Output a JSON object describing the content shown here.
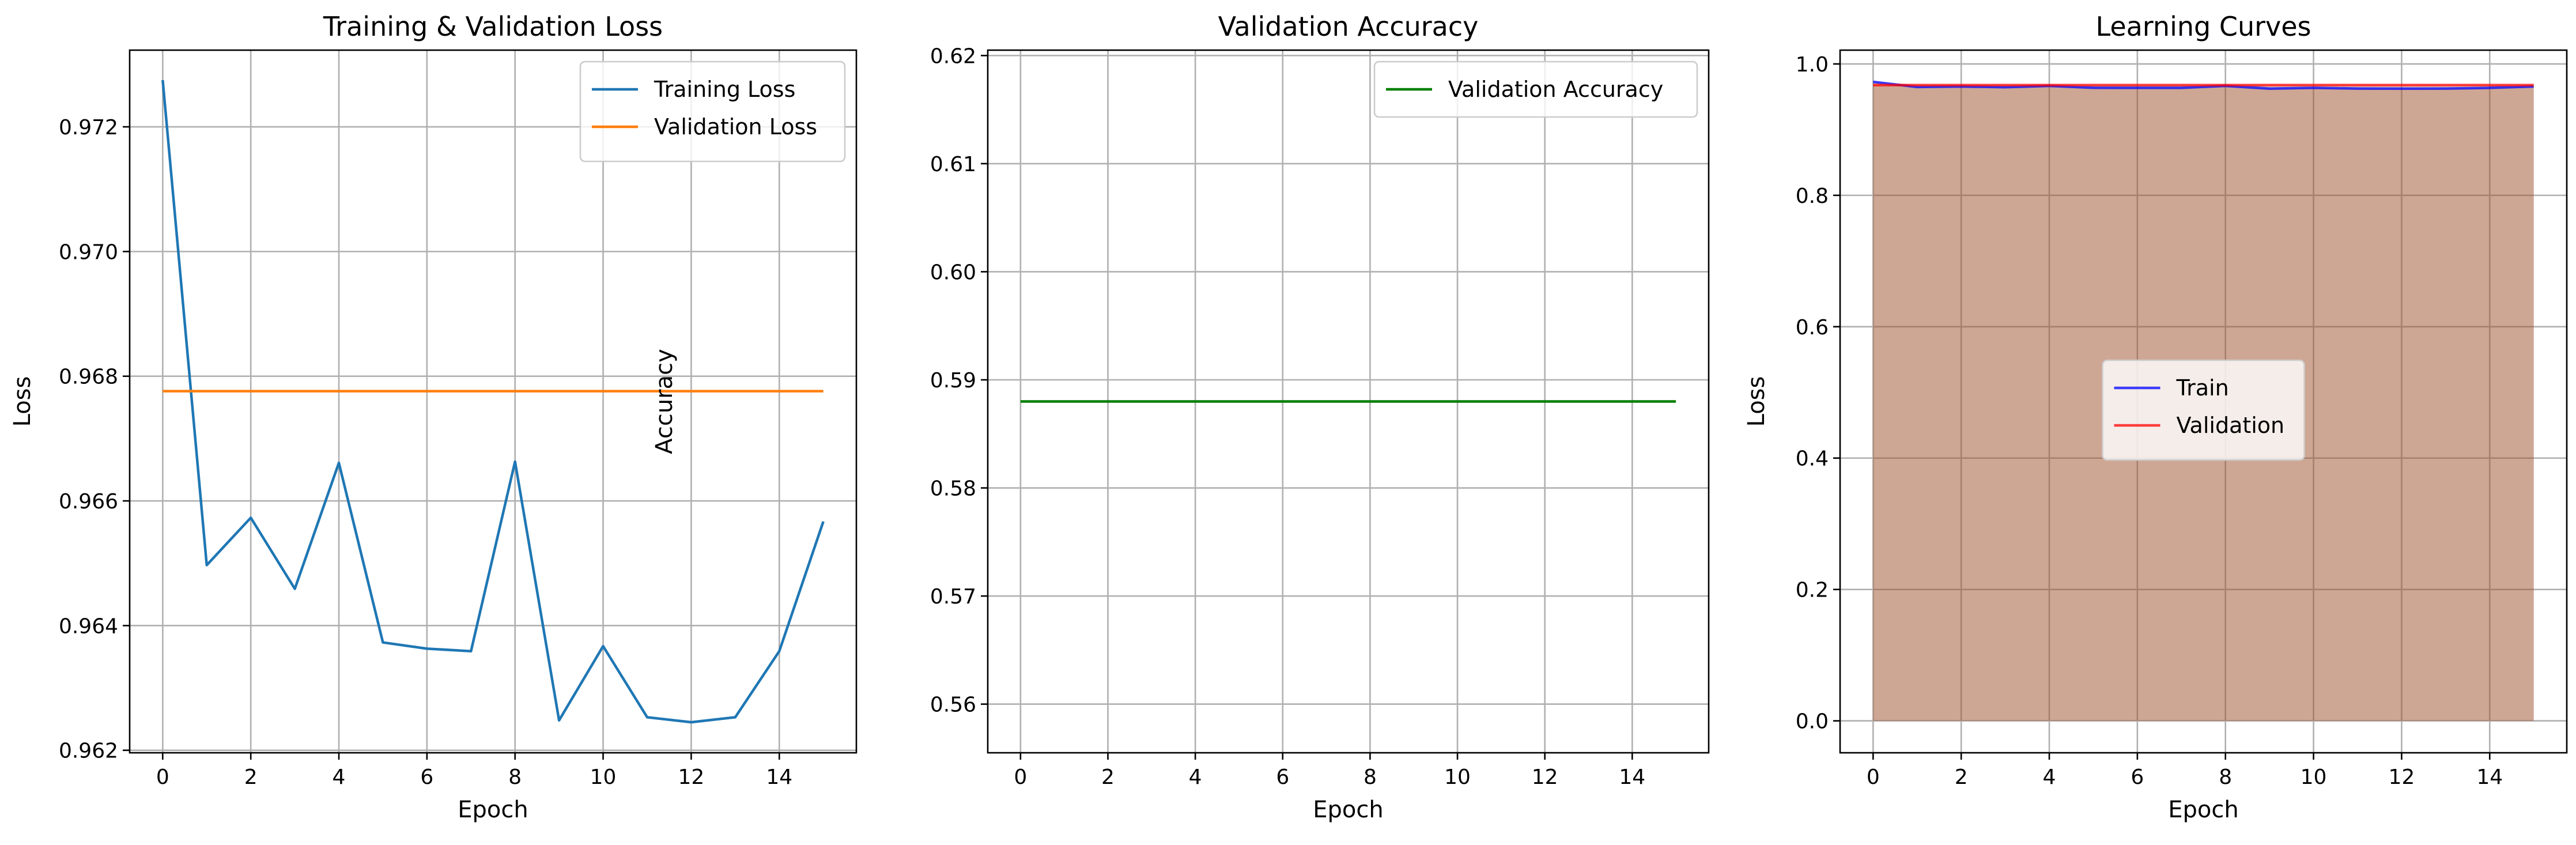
{
  "figure": {
    "background": "#ffffff"
  },
  "chart_data": [
    {
      "type": "line",
      "title": "Training & Validation Loss",
      "xlabel": "Epoch",
      "ylabel": "Loss",
      "xlim": [
        -0.75,
        15.75
      ],
      "ylim": [
        0.96196,
        0.97323
      ],
      "xticks": [
        0,
        2,
        4,
        6,
        8,
        10,
        12,
        14
      ],
      "xtick_labels": [
        "0",
        "2",
        "4",
        "6",
        "8",
        "10",
        "12",
        "14"
      ],
      "yticks": [
        0.962,
        0.964,
        0.966,
        0.968,
        0.97,
        0.972
      ],
      "ytick_labels": [
        "0.962",
        "0.964",
        "0.966",
        "0.968",
        "0.970",
        "0.972"
      ],
      "grid": true,
      "legend": {
        "position": "upper right"
      },
      "x": [
        0,
        1,
        2,
        3,
        4,
        5,
        6,
        7,
        8,
        9,
        10,
        11,
        12,
        13,
        14,
        15
      ],
      "series": [
        {
          "name": "Training Loss",
          "color": "#1f77b4",
          "values": [
            0.97275,
            0.96497,
            0.96573,
            0.96459,
            0.96661,
            0.96373,
            0.96363,
            0.96359,
            0.96663,
            0.96248,
            0.96367,
            0.96253,
            0.96245,
            0.96253,
            0.96359,
            0.96567
          ]
        },
        {
          "name": "Validation Loss",
          "color": "#ff7f0e",
          "values": [
            0.96776,
            0.96776,
            0.96776,
            0.96776,
            0.96776,
            0.96776,
            0.96776,
            0.96776,
            0.96776,
            0.96776,
            0.96776,
            0.96776,
            0.96776,
            0.96776,
            0.96776,
            0.96776
          ]
        }
      ]
    },
    {
      "type": "line",
      "title": "Validation Accuracy",
      "xlabel": "Epoch",
      "ylabel": "Accuracy",
      "xlim": [
        -0.75,
        15.75
      ],
      "ylim": [
        0.5555,
        0.6205
      ],
      "xticks": [
        0,
        2,
        4,
        6,
        8,
        10,
        12,
        14
      ],
      "xtick_labels": [
        "0",
        "2",
        "4",
        "6",
        "8",
        "10",
        "12",
        "14"
      ],
      "yticks": [
        0.56,
        0.57,
        0.58,
        0.59,
        0.6,
        0.61,
        0.62
      ],
      "ytick_labels": [
        "0.56",
        "0.57",
        "0.58",
        "0.59",
        "0.60",
        "0.61",
        "0.62"
      ],
      "grid": true,
      "legend": {
        "position": "upper right"
      },
      "x": [
        0,
        1,
        2,
        3,
        4,
        5,
        6,
        7,
        8,
        9,
        10,
        11,
        12,
        13,
        14,
        15
      ],
      "series": [
        {
          "name": "Validation Accuracy",
          "color": "#008000",
          "values": [
            0.588,
            0.588,
            0.588,
            0.588,
            0.588,
            0.588,
            0.588,
            0.588,
            0.588,
            0.588,
            0.588,
            0.588,
            0.588,
            0.588,
            0.588,
            0.588
          ]
        }
      ]
    },
    {
      "type": "area",
      "title": "Learning Curves",
      "xlabel": "Epoch",
      "ylabel": "Loss",
      "xlim": [
        -0.75,
        15.75
      ],
      "ylim": [
        -0.0486,
        1.021
      ],
      "xticks": [
        0,
        2,
        4,
        6,
        8,
        10,
        12,
        14
      ],
      "xtick_labels": [
        "0",
        "2",
        "4",
        "6",
        "8",
        "10",
        "12",
        "14"
      ],
      "yticks": [
        0.0,
        0.2,
        0.4,
        0.6,
        0.8,
        1.0
      ],
      "ytick_labels": [
        "0.0",
        "0.2",
        "0.4",
        "0.6",
        "0.8",
        "1.0"
      ],
      "grid": true,
      "legend": {
        "position": "center"
      },
      "x": [
        0,
        1,
        2,
        3,
        4,
        5,
        6,
        7,
        8,
        9,
        10,
        11,
        12,
        13,
        14,
        15
      ],
      "series": [
        {
          "name": "Train",
          "color": "#0000ff",
          "fill_alpha": 0.2,
          "values": [
            0.97275,
            0.96497,
            0.96573,
            0.96459,
            0.96661,
            0.96373,
            0.96363,
            0.96359,
            0.96663,
            0.96248,
            0.96367,
            0.96253,
            0.96245,
            0.96253,
            0.96359,
            0.96567
          ]
        },
        {
          "name": "Validation",
          "color": "#ff0000",
          "fill_alpha": 0.2,
          "values": [
            0.96776,
            0.96776,
            0.96776,
            0.96776,
            0.96776,
            0.96776,
            0.96776,
            0.96776,
            0.96776,
            0.96776,
            0.96776,
            0.96776,
            0.96776,
            0.96776,
            0.96776,
            0.96776
          ]
        }
      ]
    }
  ]
}
